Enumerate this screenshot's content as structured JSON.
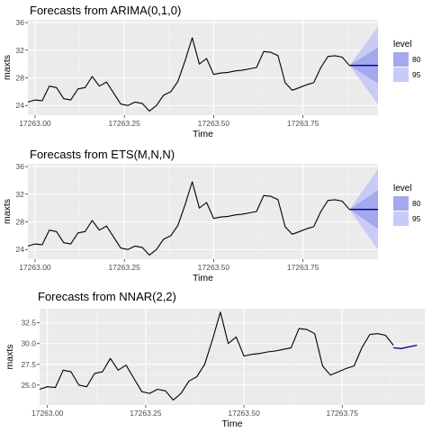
{
  "chart_data": [
    {
      "type": "line",
      "title": "Forecasts from ARIMA(0,1,0)",
      "xlabel": "Time",
      "ylabel": "maxts",
      "xlim": [
        17262.98,
        17263.96
      ],
      "ylim": [
        22.6,
        36.4
      ],
      "x_ticks": [
        17263.0,
        17263.25,
        17263.5,
        17263.75
      ],
      "x_tick_labels": [
        "17263.00",
        "17263.25",
        "17263.50",
        "17263.75"
      ],
      "y_ticks": [
        24,
        28,
        32,
        36
      ],
      "y_tick_labels": [
        "24",
        "28",
        "32",
        "36"
      ],
      "legend": {
        "title": "level",
        "entries": [
          "80",
          "95"
        ],
        "position": "right"
      },
      "history": {
        "x": [
          17262.98,
          17263.0,
          17263.02,
          17263.04,
          17263.06,
          17263.08,
          17263.1,
          17263.12,
          17263.14,
          17263.16,
          17263.18,
          17263.2,
          17263.22,
          17263.24,
          17263.26,
          17263.28,
          17263.3,
          17263.32,
          17263.34,
          17263.36,
          17263.38,
          17263.4,
          17263.42,
          17263.44,
          17263.46,
          17263.48,
          17263.5,
          17263.52,
          17263.54,
          17263.56,
          17263.58,
          17263.6,
          17263.62,
          17263.64,
          17263.66,
          17263.68,
          17263.7,
          17263.72,
          17263.74,
          17263.76,
          17263.78,
          17263.8,
          17263.82,
          17263.84,
          17263.86,
          17263.88
        ],
        "y": [
          24.5,
          24.8,
          24.7,
          26.8,
          26.6,
          25.0,
          24.8,
          26.4,
          26.6,
          28.2,
          26.8,
          27.4,
          25.8,
          24.2,
          24.0,
          24.5,
          24.3,
          23.2,
          24.0,
          25.5,
          26.0,
          27.5,
          30.5,
          33.8,
          30.0,
          30.8,
          28.5,
          28.7,
          28.8,
          29.0,
          29.1,
          29.3,
          29.5,
          31.8,
          31.7,
          31.2,
          27.3,
          26.2,
          26.6,
          27.0,
          27.3,
          29.5,
          31.1,
          31.2,
          31.0,
          29.8
        ]
      },
      "forecast": {
        "x": [
          17263.88,
          17263.96
        ],
        "y": [
          29.8,
          29.8
        ],
        "lo80": [
          29.8,
          27.2
        ],
        "hi80": [
          29.8,
          32.4
        ],
        "lo95": [
          29.8,
          24.2
        ],
        "hi95": [
          29.8,
          35.4
        ]
      },
      "colors": {
        "band95": "#c8cbf5",
        "band80": "#a4a8ec",
        "mean": "#00008b",
        "history": "#000000"
      }
    },
    {
      "type": "line",
      "title": "Forecasts from ETS(M,N,N)",
      "xlabel": "Time",
      "ylabel": "maxts",
      "xlim": [
        17262.98,
        17263.96
      ],
      "ylim": [
        22.6,
        36.4
      ],
      "x_ticks": [
        17263.0,
        17263.25,
        17263.5,
        17263.75
      ],
      "x_tick_labels": [
        "17263.00",
        "17263.25",
        "17263.50",
        "17263.75"
      ],
      "y_ticks": [
        24,
        28,
        32,
        36
      ],
      "y_tick_labels": [
        "24",
        "28",
        "32",
        "36"
      ],
      "legend": {
        "title": "level",
        "entries": [
          "80",
          "95"
        ],
        "position": "right"
      },
      "history": {
        "x": [
          17262.98,
          17263.0,
          17263.02,
          17263.04,
          17263.06,
          17263.08,
          17263.1,
          17263.12,
          17263.14,
          17263.16,
          17263.18,
          17263.2,
          17263.22,
          17263.24,
          17263.26,
          17263.28,
          17263.3,
          17263.32,
          17263.34,
          17263.36,
          17263.38,
          17263.4,
          17263.42,
          17263.44,
          17263.46,
          17263.48,
          17263.5,
          17263.52,
          17263.54,
          17263.56,
          17263.58,
          17263.6,
          17263.62,
          17263.64,
          17263.66,
          17263.68,
          17263.7,
          17263.72,
          17263.74,
          17263.76,
          17263.78,
          17263.8,
          17263.82,
          17263.84,
          17263.86,
          17263.88
        ],
        "y": [
          24.5,
          24.8,
          24.7,
          26.8,
          26.6,
          25.0,
          24.8,
          26.4,
          26.6,
          28.2,
          26.8,
          27.4,
          25.8,
          24.2,
          24.0,
          24.5,
          24.3,
          23.2,
          24.0,
          25.5,
          26.0,
          27.5,
          30.5,
          33.8,
          30.0,
          30.8,
          28.5,
          28.7,
          28.8,
          29.0,
          29.1,
          29.3,
          29.5,
          31.8,
          31.7,
          31.2,
          27.3,
          26.2,
          26.6,
          27.0,
          27.3,
          29.5,
          31.1,
          31.2,
          31.0,
          29.8
        ]
      },
      "forecast": {
        "x": [
          17263.88,
          17263.96
        ],
        "y": [
          29.8,
          29.8
        ],
        "lo80": [
          29.8,
          27.0
        ],
        "hi80": [
          29.8,
          32.6
        ],
        "lo95": [
          29.8,
          24.0
        ],
        "hi95": [
          29.8,
          35.6
        ]
      },
      "colors": {
        "band95": "#c8cbf5",
        "band80": "#a4a8ec",
        "mean": "#00008b",
        "history": "#000000"
      }
    },
    {
      "type": "line",
      "title": "Forecasts from NNAR(2,2)",
      "xlabel": "Time",
      "ylabel": "maxts",
      "xlim": [
        17262.98,
        17263.96
      ],
      "ylim": [
        22.6,
        34.2
      ],
      "x_ticks": [
        17263.0,
        17263.25,
        17263.5,
        17263.75
      ],
      "x_tick_labels": [
        "17263.00",
        "17263.25",
        "17263.50",
        "17263.75"
      ],
      "y_ticks": [
        25.0,
        27.5,
        30.0,
        32.5
      ],
      "y_tick_labels": [
        "25.0",
        "27.5",
        "30.0",
        "32.5"
      ],
      "history": {
        "x": [
          17262.98,
          17263.0,
          17263.02,
          17263.04,
          17263.06,
          17263.08,
          17263.1,
          17263.12,
          17263.14,
          17263.16,
          17263.18,
          17263.2,
          17263.22,
          17263.24,
          17263.26,
          17263.28,
          17263.3,
          17263.32,
          17263.34,
          17263.36,
          17263.38,
          17263.4,
          17263.42,
          17263.44,
          17263.46,
          17263.48,
          17263.5,
          17263.52,
          17263.54,
          17263.56,
          17263.58,
          17263.6,
          17263.62,
          17263.64,
          17263.66,
          17263.68,
          17263.7,
          17263.72,
          17263.74,
          17263.76,
          17263.78,
          17263.8,
          17263.82,
          17263.84,
          17263.86,
          17263.88
        ],
        "y": [
          24.5,
          24.8,
          24.7,
          26.8,
          26.6,
          25.0,
          24.8,
          26.4,
          26.6,
          28.2,
          26.8,
          27.4,
          25.8,
          24.2,
          24.0,
          24.5,
          24.3,
          23.2,
          24.0,
          25.5,
          26.0,
          27.5,
          30.5,
          33.8,
          30.0,
          30.8,
          28.5,
          28.7,
          28.8,
          29.0,
          29.1,
          29.3,
          29.5,
          31.8,
          31.7,
          31.2,
          27.3,
          26.2,
          26.6,
          27.0,
          27.3,
          29.5,
          31.1,
          31.2,
          31.0,
          29.8
        ]
      },
      "forecast": {
        "x": [
          17263.88,
          17263.9,
          17263.92,
          17263.94
        ],
        "y": [
          29.5,
          29.4,
          29.6,
          29.8
        ]
      },
      "colors": {
        "mean": "#00008b",
        "history": "#000000"
      }
    }
  ]
}
